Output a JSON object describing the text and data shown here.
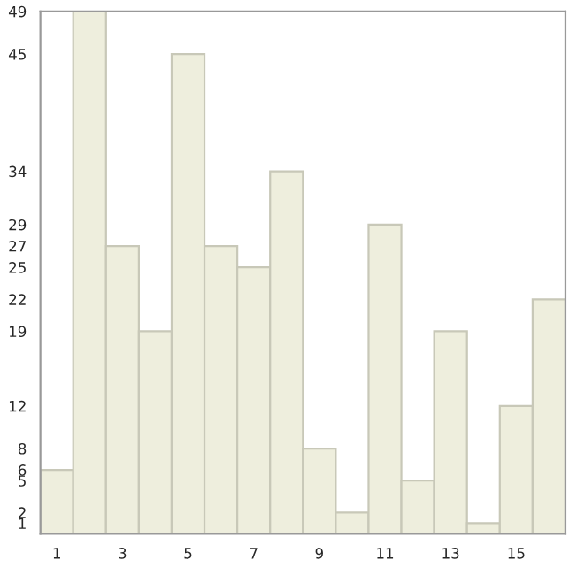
{
  "chart_data": {
    "type": "bar",
    "categories": [
      "1",
      null,
      "3",
      null,
      "5",
      null,
      "7",
      null,
      "9",
      null,
      "11",
      null,
      "13",
      null,
      "15",
      null
    ],
    "values": [
      6,
      49,
      27,
      19,
      45,
      27,
      25,
      34,
      8,
      2,
      29,
      5,
      19,
      1,
      12,
      22
    ],
    "color": "#eeeedd",
    "ylim": [
      0,
      49
    ],
    "yticks": [
      1,
      2,
      5,
      6,
      8,
      12,
      19,
      22,
      25,
      27,
      29,
      34,
      45,
      49
    ],
    "grid": false
  }
}
